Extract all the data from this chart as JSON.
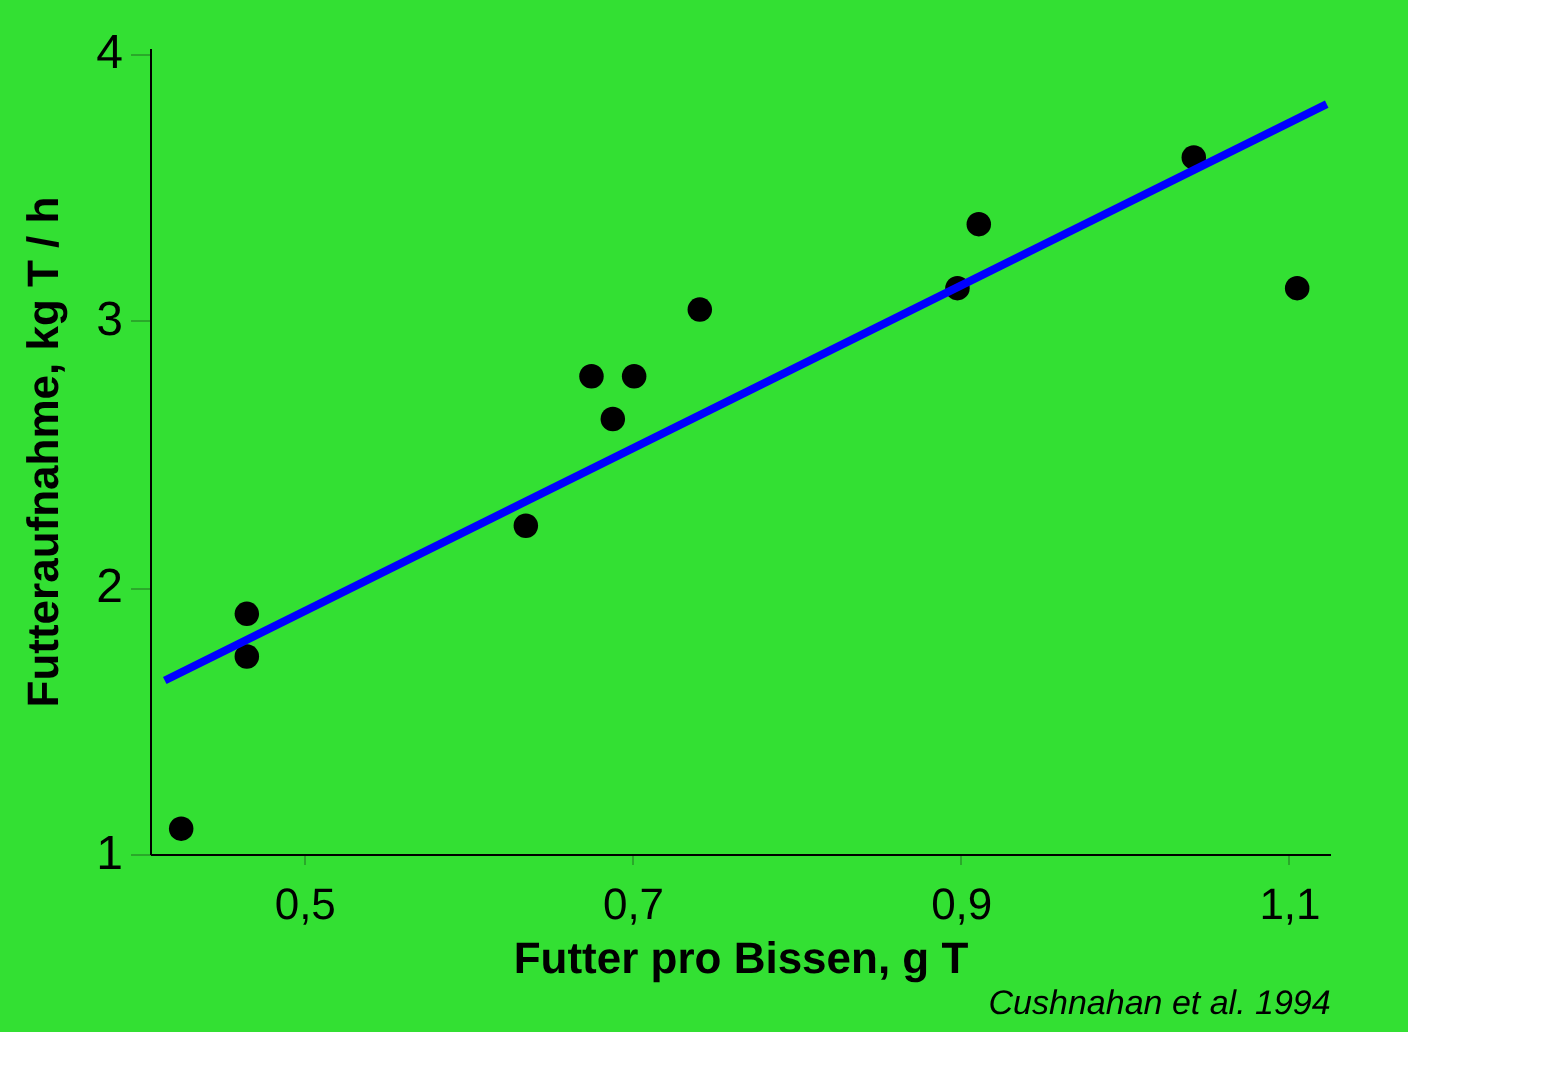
{
  "chart_data": {
    "type": "scatter",
    "xlabel": "Futter pro Bissen, g T",
    "ylabel": "Futteraufnahme, kg T / h",
    "annotations": [
      "Cushnahan et al. 1994"
    ],
    "xlim": [
      0.406,
      1.125
    ],
    "ylim": [
      1,
      4.02
    ],
    "xticks": [
      {
        "value": 0.5,
        "label": "0,5"
      },
      {
        "value": 0.7,
        "label": "0,7"
      },
      {
        "value": 0.9,
        "label": "0,9"
      },
      {
        "value": 1.1,
        "label": "1,1"
      }
    ],
    "yticks": [
      1,
      2,
      3,
      4
    ],
    "grid": false,
    "series": [
      {
        "color": "#000000",
        "marker": "circle",
        "x": [
          0.425,
          0.465,
          0.465,
          0.635,
          0.675,
          0.701,
          0.688,
          0.741,
          0.898,
          0.911,
          1.042,
          1.105
        ],
        "values": [
          1.095,
          1.9,
          1.74,
          2.23,
          2.79,
          2.79,
          2.63,
          3.04,
          3.12,
          3.36,
          3.61,
          3.12
        ]
      },
      {
        "type": "line",
        "color": "#0000ff",
        "line_style": "solid",
        "marker": "none",
        "x": [
          0.415,
          1.123
        ],
        "values": [
          1.65,
          3.81
        ]
      }
    ]
  }
}
